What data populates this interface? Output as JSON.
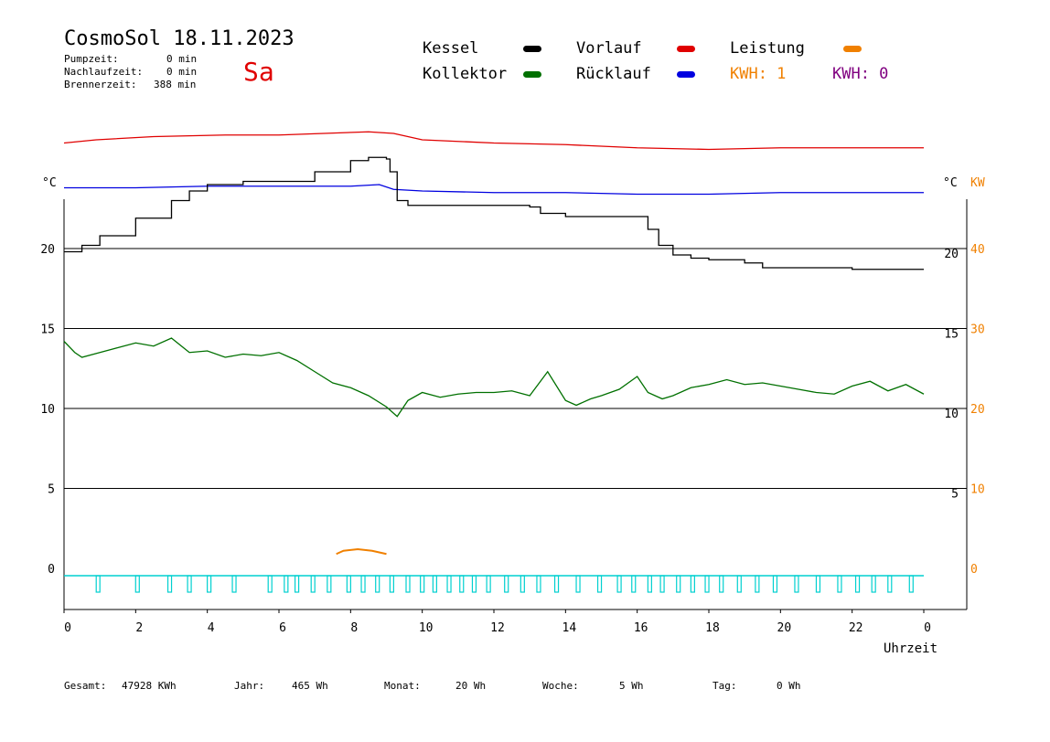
{
  "header": {
    "title": "CosmoSol 18.11.2023",
    "day": "Sa",
    "stats": [
      {
        "label": "Pumpzeit:",
        "value": "0 min"
      },
      {
        "label": "Nachlaufzeit:",
        "value": "0 min"
      },
      {
        "label": "Brennerzeit:",
        "value": "388 min"
      }
    ]
  },
  "legend": {
    "kessel": "Kessel",
    "kollektor": "Kollektor",
    "vorlauf": "Vorlauf",
    "ruecklauf": "Rücklauf",
    "leistung": "Leistung",
    "kwh1": "KWH: 1",
    "kwh2": "KWH: 0"
  },
  "colors": {
    "kessel": "#000000",
    "kollektor": "#007000",
    "vorlauf": "#e00000",
    "ruecklauf": "#0000e0",
    "leistung": "#f08000",
    "kwh2": "#800080",
    "pump": "#00d0d0"
  },
  "footer": {
    "gesamt_label": "Gesamt:",
    "gesamt_value": "47928 KWh",
    "jahr_label": "Jahr:",
    "jahr_value": "465 Wh",
    "monat_label": "Monat:",
    "monat_value": "20 Wh",
    "woche_label": "Woche:",
    "woche_value": "5 Wh",
    "tag_label": "Tag:",
    "tag_value": "0 Wh"
  },
  "chart_data": {
    "type": "line",
    "xlabel": "Uhrzeit",
    "ylabel_left": "°C",
    "ylabel_right": "°C",
    "ylabel_right2": "KW",
    "xlim": [
      0,
      24
    ],
    "x_ticks": [
      "0",
      "2",
      "4",
      "6",
      "8",
      "10",
      "12",
      "14",
      "16",
      "18",
      "20",
      "22",
      "0"
    ],
    "left_ticks": [
      "20",
      "15",
      "10",
      "5",
      "0"
    ],
    "right_ticks": [
      "20",
      "15",
      "10",
      "5"
    ],
    "right2_ticks": [
      "40",
      "30",
      "20",
      "10",
      "0"
    ],
    "series": [
      {
        "name": "Vorlauf",
        "x": [
          0,
          0.9,
          2.5,
          4.5,
          6,
          8.5,
          9.2,
          10,
          12,
          14,
          16,
          18,
          20,
          22,
          24
        ],
        "y": [
          26.6,
          26.8,
          27.0,
          27.1,
          27.1,
          27.3,
          27.2,
          26.8,
          26.6,
          26.5,
          26.3,
          26.2,
          26.3,
          26.3,
          26.3
        ]
      },
      {
        "name": "Rücklauf",
        "x": [
          0,
          2,
          4,
          6,
          8,
          8.8,
          9.2,
          10,
          12,
          14,
          16,
          18,
          20,
          22,
          24
        ],
        "y": [
          23.8,
          23.8,
          23.9,
          23.9,
          23.9,
          24.0,
          23.7,
          23.6,
          23.5,
          23.5,
          23.4,
          23.4,
          23.5,
          23.5,
          23.5
        ]
      },
      {
        "name": "Kessel",
        "x": [
          0,
          0.5,
          1,
          2,
          3,
          3.5,
          4,
          5,
          6,
          7,
          8,
          8.5,
          9.0,
          9.1,
          9.3,
          9.6,
          10,
          12,
          13,
          13.3,
          14,
          16,
          16.3,
          16.6,
          17,
          17.5,
          18,
          19,
          19.5,
          20,
          22,
          24
        ],
        "y": [
          19.8,
          20.2,
          20.8,
          21.9,
          23.0,
          23.6,
          24.0,
          24.2,
          24.2,
          24.8,
          25.5,
          25.7,
          25.6,
          24.8,
          23.0,
          22.7,
          22.7,
          22.7,
          22.6,
          22.2,
          22.0,
          22.0,
          21.2,
          20.2,
          19.6,
          19.4,
          19.3,
          19.1,
          18.8,
          18.8,
          18.7,
          18.7
        ]
      },
      {
        "name": "Kollektor",
        "x": [
          0,
          0.3,
          0.5,
          1,
          1.5,
          2,
          2.5,
          3,
          3.5,
          4,
          4.5,
          5,
          5.5,
          6,
          6.5,
          7,
          7.5,
          8,
          8.5,
          9,
          9.3,
          9.6,
          10,
          10.5,
          11,
          11.5,
          12,
          12.5,
          13,
          13.5,
          14,
          14.3,
          14.7,
          15,
          15.5,
          16,
          16.3,
          16.7,
          17,
          17.5,
          18,
          18.5,
          19,
          19.5,
          20,
          20.5,
          21,
          21.5,
          22,
          22.5,
          23,
          23.5,
          24
        ],
        "y": [
          14.2,
          13.5,
          13.2,
          13.5,
          13.8,
          14.1,
          13.9,
          14.4,
          13.5,
          13.6,
          13.2,
          13.4,
          13.3,
          13.5,
          13.0,
          12.3,
          11.6,
          11.3,
          10.8,
          10.1,
          9.5,
          10.5,
          11.0,
          10.7,
          10.9,
          11.0,
          11.0,
          11.1,
          10.8,
          12.3,
          10.5,
          10.2,
          10.6,
          10.8,
          11.2,
          12.0,
          11.0,
          10.6,
          10.8,
          11.3,
          11.5,
          11.8,
          11.5,
          11.6,
          11.4,
          11.2,
          11.0,
          10.9,
          11.4,
          11.7,
          11.1,
          11.5,
          10.9
        ]
      },
      {
        "name": "Leistung",
        "x": [
          7.6,
          7.8,
          8.2,
          8.6,
          9.0
        ],
        "y": [
          0.9,
          1.1,
          1.2,
          1.1,
          0.9
        ]
      }
    ],
    "pump_on_hours": [
      0.95,
      2.05,
      2.95,
      3.5,
      4.05,
      4.75,
      5.75,
      6.2,
      6.5,
      6.95,
      7.4,
      7.95,
      8.35,
      8.75,
      9.15,
      9.6,
      10.0,
      10.35,
      10.75,
      11.1,
      11.45,
      11.85,
      12.35,
      12.8,
      13.25,
      13.75,
      14.35,
      14.95,
      15.5,
      15.9,
      16.35,
      16.7,
      17.15,
      17.55,
      17.95,
      18.35,
      18.85,
      19.35,
      19.85,
      20.45,
      21.05,
      21.65,
      22.15,
      22.6,
      23.05,
      23.65
    ],
    "grid": true,
    "legend_position": "top"
  }
}
